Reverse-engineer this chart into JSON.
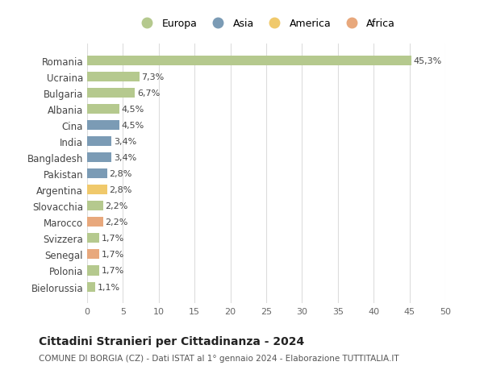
{
  "categories": [
    "Romania",
    "Ucraina",
    "Bulgaria",
    "Albania",
    "Cina",
    "India",
    "Bangladesh",
    "Pakistan",
    "Argentina",
    "Slovacchia",
    "Marocco",
    "Svizzera",
    "Senegal",
    "Polonia",
    "Bielorussia"
  ],
  "values": [
    45.3,
    7.3,
    6.7,
    4.5,
    4.5,
    3.4,
    3.4,
    2.8,
    2.8,
    2.2,
    2.2,
    1.7,
    1.7,
    1.7,
    1.1
  ],
  "labels": [
    "45,3%",
    "7,3%",
    "6,7%",
    "4,5%",
    "4,5%",
    "3,4%",
    "3,4%",
    "2,8%",
    "2,8%",
    "2,2%",
    "2,2%",
    "1,7%",
    "1,7%",
    "1,7%",
    "1,1%"
  ],
  "continents": [
    "Europa",
    "Europa",
    "Europa",
    "Europa",
    "Asia",
    "Asia",
    "Asia",
    "Asia",
    "America",
    "Europa",
    "Africa",
    "Europa",
    "Africa",
    "Europa",
    "Europa"
  ],
  "continent_colors": {
    "Europa": "#b5c98e",
    "Asia": "#7b9bb5",
    "America": "#f0c96b",
    "Africa": "#e8a87c"
  },
  "legend_order": [
    "Europa",
    "Asia",
    "America",
    "Africa"
  ],
  "title": "Cittadini Stranieri per Cittadinanza - 2024",
  "subtitle": "COMUNE DI BORGIA (CZ) - Dati ISTAT al 1° gennaio 2024 - Elaborazione TUTTITALIA.IT",
  "xlim": [
    0,
    50
  ],
  "xticks": [
    0,
    5,
    10,
    15,
    20,
    25,
    30,
    35,
    40,
    45,
    50
  ],
  "background_color": "#ffffff",
  "grid_color": "#dddddd"
}
